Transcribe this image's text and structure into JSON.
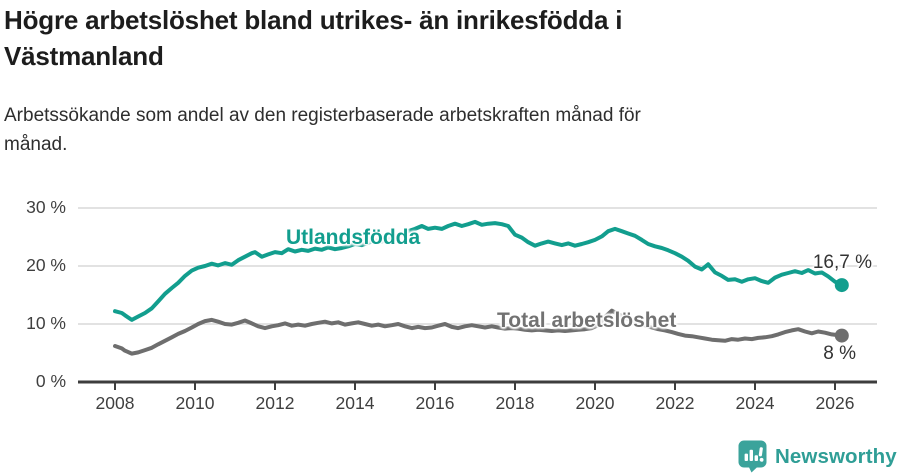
{
  "header": {
    "title": "Högre arbetslöshet bland utrikes- än inrikesfödda i\nVästmanland",
    "subtitle": "Arbetssökande som andel av den registerbaserade arbetskraften månad för\nmånad."
  },
  "chart_data": {
    "type": "line",
    "title": "Högre arbetslöshet bland utrikes- än inrikesfödda i Västmanland",
    "subtitle": "Arbetssökande som andel av den registerbaserade arbetskraften månad för månad.",
    "unit": "%",
    "xlim": [
      2007.8,
      2026.6
    ],
    "ylim": [
      0,
      30
    ],
    "grid": true,
    "grid_color": "#d9d9d9",
    "axis_color": "#3d3d3d",
    "legend_position": "inline-labels",
    "x_ticks": [
      2008,
      2010,
      2012,
      2014,
      2016,
      2018,
      2020,
      2022,
      2024,
      2026
    ],
    "y_ticks": [
      {
        "value": 0,
        "label": "0 %"
      },
      {
        "value": 10,
        "label": "10 %"
      },
      {
        "value": 20,
        "label": "20 %"
      },
      {
        "value": 30,
        "label": "30 %"
      }
    ],
    "series": [
      {
        "name": "Utlandsfödda",
        "color": "#129e8e",
        "end_label": "16,7 %",
        "end_value": 16.7,
        "points": [
          [
            2008.0,
            12.2
          ],
          [
            2008.17,
            11.9
          ],
          [
            2008.25,
            11.5
          ],
          [
            2008.42,
            10.7
          ],
          [
            2008.58,
            11.3
          ],
          [
            2008.75,
            11.9
          ],
          [
            2008.92,
            12.7
          ],
          [
            2009.08,
            13.9
          ],
          [
            2009.25,
            15.2
          ],
          [
            2009.42,
            16.2
          ],
          [
            2009.58,
            17.1
          ],
          [
            2009.75,
            18.3
          ],
          [
            2009.92,
            19.2
          ],
          [
            2010.08,
            19.7
          ],
          [
            2010.25,
            20.0
          ],
          [
            2010.42,
            20.4
          ],
          [
            2010.58,
            20.1
          ],
          [
            2010.75,
            20.5
          ],
          [
            2010.92,
            20.2
          ],
          [
            2011.08,
            21.0
          ],
          [
            2011.25,
            21.6
          ],
          [
            2011.42,
            22.2
          ],
          [
            2011.5,
            22.4
          ],
          [
            2011.67,
            21.6
          ],
          [
            2011.83,
            22.0
          ],
          [
            2012.0,
            22.4
          ],
          [
            2012.17,
            22.2
          ],
          [
            2012.33,
            22.9
          ],
          [
            2012.5,
            22.5
          ],
          [
            2012.67,
            22.8
          ],
          [
            2012.83,
            22.6
          ],
          [
            2013.0,
            23.0
          ],
          [
            2013.17,
            22.8
          ],
          [
            2013.33,
            23.2
          ],
          [
            2013.5,
            22.9
          ],
          [
            2013.67,
            23.1
          ],
          [
            2013.83,
            23.4
          ],
          [
            2014.0,
            23.8
          ],
          [
            2014.17,
            23.6
          ],
          [
            2014.33,
            24.0
          ],
          [
            2014.5,
            24.4
          ],
          [
            2014.67,
            24.2
          ],
          [
            2014.83,
            24.7
          ],
          [
            2015.0,
            25.0
          ],
          [
            2015.17,
            25.5
          ],
          [
            2015.33,
            26.0
          ],
          [
            2015.5,
            26.4
          ],
          [
            2015.67,
            26.9
          ],
          [
            2015.83,
            26.4
          ],
          [
            2016.0,
            26.6
          ],
          [
            2016.17,
            26.4
          ],
          [
            2016.33,
            26.9
          ],
          [
            2016.5,
            27.3
          ],
          [
            2016.67,
            26.9
          ],
          [
            2016.83,
            27.2
          ],
          [
            2017.0,
            27.6
          ],
          [
            2017.17,
            27.1
          ],
          [
            2017.33,
            27.3
          ],
          [
            2017.5,
            27.4
          ],
          [
            2017.67,
            27.2
          ],
          [
            2017.83,
            26.9
          ],
          [
            2018.0,
            25.4
          ],
          [
            2018.17,
            24.9
          ],
          [
            2018.33,
            24.1
          ],
          [
            2018.5,
            23.5
          ],
          [
            2018.67,
            23.9
          ],
          [
            2018.83,
            24.2
          ],
          [
            2019.0,
            23.9
          ],
          [
            2019.17,
            23.6
          ],
          [
            2019.33,
            23.9
          ],
          [
            2019.5,
            23.5
          ],
          [
            2019.67,
            23.8
          ],
          [
            2019.83,
            24.1
          ],
          [
            2020.0,
            24.5
          ],
          [
            2020.17,
            25.1
          ],
          [
            2020.33,
            26.0
          ],
          [
            2020.5,
            26.4
          ],
          [
            2020.67,
            26.0
          ],
          [
            2020.83,
            25.6
          ],
          [
            2021.0,
            25.2
          ],
          [
            2021.17,
            24.5
          ],
          [
            2021.33,
            23.8
          ],
          [
            2021.5,
            23.4
          ],
          [
            2021.67,
            23.1
          ],
          [
            2021.83,
            22.7
          ],
          [
            2022.0,
            22.2
          ],
          [
            2022.17,
            21.6
          ],
          [
            2022.33,
            20.9
          ],
          [
            2022.5,
            19.9
          ],
          [
            2022.67,
            19.4
          ],
          [
            2022.83,
            20.3
          ],
          [
            2023.0,
            18.9
          ],
          [
            2023.17,
            18.3
          ],
          [
            2023.33,
            17.6
          ],
          [
            2023.5,
            17.7
          ],
          [
            2023.67,
            17.3
          ],
          [
            2023.83,
            17.7
          ],
          [
            2024.0,
            17.9
          ],
          [
            2024.17,
            17.4
          ],
          [
            2024.33,
            17.1
          ],
          [
            2024.5,
            18.0
          ],
          [
            2024.67,
            18.5
          ],
          [
            2024.83,
            18.8
          ],
          [
            2025.0,
            19.1
          ],
          [
            2025.17,
            18.8
          ],
          [
            2025.33,
            19.3
          ],
          [
            2025.5,
            18.7
          ],
          [
            2025.67,
            18.9
          ],
          [
            2025.83,
            18.2
          ],
          [
            2026.0,
            17.3
          ],
          [
            2026.17,
            16.7
          ]
        ]
      },
      {
        "name": "Total arbetslöshet",
        "color": "#6e6e6e",
        "end_label": "8 %",
        "end_value": 8.0,
        "points": [
          [
            2008.0,
            6.2
          ],
          [
            2008.17,
            5.8
          ],
          [
            2008.25,
            5.4
          ],
          [
            2008.42,
            4.9
          ],
          [
            2008.58,
            5.1
          ],
          [
            2008.75,
            5.5
          ],
          [
            2008.92,
            5.9
          ],
          [
            2009.08,
            6.5
          ],
          [
            2009.25,
            7.1
          ],
          [
            2009.42,
            7.7
          ],
          [
            2009.58,
            8.3
          ],
          [
            2009.75,
            8.8
          ],
          [
            2009.92,
            9.4
          ],
          [
            2010.08,
            10.0
          ],
          [
            2010.25,
            10.5
          ],
          [
            2010.42,
            10.7
          ],
          [
            2010.58,
            10.4
          ],
          [
            2010.75,
            10.0
          ],
          [
            2010.92,
            9.9
          ],
          [
            2011.08,
            10.2
          ],
          [
            2011.25,
            10.6
          ],
          [
            2011.42,
            10.1
          ],
          [
            2011.58,
            9.6
          ],
          [
            2011.75,
            9.3
          ],
          [
            2011.92,
            9.6
          ],
          [
            2012.08,
            9.8
          ],
          [
            2012.25,
            10.1
          ],
          [
            2012.42,
            9.7
          ],
          [
            2012.58,
            9.9
          ],
          [
            2012.75,
            9.7
          ],
          [
            2012.92,
            10.0
          ],
          [
            2013.08,
            10.2
          ],
          [
            2013.25,
            10.4
          ],
          [
            2013.42,
            10.1
          ],
          [
            2013.58,
            10.3
          ],
          [
            2013.75,
            9.9
          ],
          [
            2013.92,
            10.1
          ],
          [
            2014.08,
            10.3
          ],
          [
            2014.25,
            10.0
          ],
          [
            2014.42,
            9.7
          ],
          [
            2014.58,
            9.9
          ],
          [
            2014.75,
            9.6
          ],
          [
            2014.92,
            9.8
          ],
          [
            2015.08,
            10.0
          ],
          [
            2015.25,
            9.6
          ],
          [
            2015.42,
            9.3
          ],
          [
            2015.58,
            9.5
          ],
          [
            2015.75,
            9.3
          ],
          [
            2015.92,
            9.4
          ],
          [
            2016.08,
            9.7
          ],
          [
            2016.25,
            10.0
          ],
          [
            2016.42,
            9.5
          ],
          [
            2016.58,
            9.3
          ],
          [
            2016.75,
            9.6
          ],
          [
            2016.92,
            9.8
          ],
          [
            2017.08,
            9.6
          ],
          [
            2017.25,
            9.4
          ],
          [
            2017.42,
            9.6
          ],
          [
            2017.58,
            9.4
          ],
          [
            2017.75,
            9.2
          ],
          [
            2017.92,
            9.3
          ],
          [
            2018.08,
            9.2
          ],
          [
            2018.25,
            9.0
          ],
          [
            2018.42,
            8.9
          ],
          [
            2018.58,
            9.0
          ],
          [
            2018.75,
            8.9
          ],
          [
            2018.92,
            8.8
          ],
          [
            2019.08,
            8.9
          ],
          [
            2019.25,
            8.8
          ],
          [
            2019.42,
            8.9
          ],
          [
            2019.58,
            9.0
          ],
          [
            2019.75,
            9.1
          ],
          [
            2019.92,
            9.3
          ],
          [
            2020.08,
            9.8
          ],
          [
            2020.25,
            11.2
          ],
          [
            2020.42,
            12.3
          ],
          [
            2020.58,
            11.7
          ],
          [
            2020.75,
            11.1
          ],
          [
            2020.92,
            10.6
          ],
          [
            2021.08,
            10.2
          ],
          [
            2021.25,
            9.8
          ],
          [
            2021.42,
            9.4
          ],
          [
            2021.58,
            9.1
          ],
          [
            2021.75,
            8.9
          ],
          [
            2021.92,
            8.6
          ],
          [
            2022.08,
            8.3
          ],
          [
            2022.25,
            8.0
          ],
          [
            2022.42,
            7.9
          ],
          [
            2022.58,
            7.7
          ],
          [
            2022.75,
            7.5
          ],
          [
            2022.92,
            7.3
          ],
          [
            2023.08,
            7.2
          ],
          [
            2023.25,
            7.1
          ],
          [
            2023.42,
            7.4
          ],
          [
            2023.58,
            7.3
          ],
          [
            2023.75,
            7.5
          ],
          [
            2023.92,
            7.4
          ],
          [
            2024.08,
            7.6
          ],
          [
            2024.25,
            7.7
          ],
          [
            2024.42,
            7.9
          ],
          [
            2024.58,
            8.2
          ],
          [
            2024.75,
            8.6
          ],
          [
            2024.92,
            8.9
          ],
          [
            2025.08,
            9.1
          ],
          [
            2025.25,
            8.7
          ],
          [
            2025.42,
            8.4
          ],
          [
            2025.58,
            8.7
          ],
          [
            2025.75,
            8.5
          ],
          [
            2025.92,
            8.2
          ],
          [
            2026.17,
            8.0
          ]
        ]
      }
    ]
  },
  "footer": {
    "brand": "Newsworthy",
    "brand_color": "#2f9e96",
    "badge_color": "#3ba39b"
  }
}
